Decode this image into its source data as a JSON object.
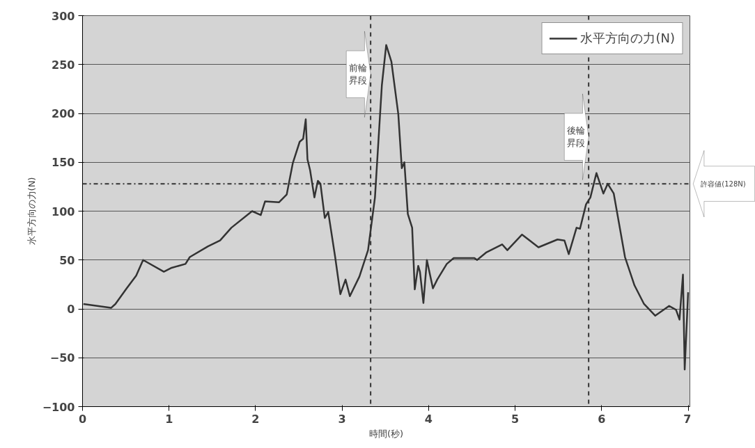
{
  "chart_data": {
    "type": "line",
    "xlabel": "時間(秒)",
    "ylabel": "水平方向の力(N)",
    "x": [
      0.01,
      0.33,
      0.38,
      0.51,
      0.62,
      0.7,
      0.94,
      1.03,
      1.19,
      1.24,
      1.45,
      1.59,
      1.72,
      1.96,
      2.06,
      2.11,
      2.27,
      2.36,
      2.43,
      2.51,
      2.55,
      2.58,
      2.6,
      2.63,
      2.68,
      2.72,
      2.75,
      2.8,
      2.84,
      2.92,
      2.98,
      3.04,
      3.09,
      3.2,
      3.3,
      3.38,
      3.46,
      3.51,
      3.57,
      3.65,
      3.69,
      3.72,
      3.76,
      3.81,
      3.84,
      3.88,
      3.9,
      3.94,
      3.98,
      4.05,
      4.1,
      4.21,
      4.29,
      4.53,
      4.56,
      4.67,
      4.85,
      4.91,
      5.08,
      5.27,
      5.49,
      5.57,
      5.62,
      5.71,
      5.75,
      5.82,
      5.87,
      5.94,
      6.02,
      6.07,
      6.14,
      6.27,
      6.38,
      6.49,
      6.62,
      6.78,
      6.86,
      6.9,
      6.94,
      6.96,
      7.0
    ],
    "series": [
      {
        "name": "水平方向の力(N)",
        "color": "#333333",
        "values": [
          5,
          1,
          5,
          21,
          34,
          50,
          38,
          42,
          46,
          53,
          64,
          70,
          83,
          100,
          96,
          110,
          109,
          117,
          149,
          171,
          174,
          194,
          153,
          142,
          114,
          131,
          128,
          93,
          99,
          53,
          15,
          30,
          13,
          33,
          60,
          114,
          229,
          270,
          253,
          199,
          144,
          150,
          97,
          83,
          20,
          44,
          38,
          6,
          50,
          21,
          30,
          46,
          52,
          52,
          50,
          58,
          66,
          60,
          76,
          63,
          71,
          70,
          56,
          83,
          82,
          107,
          114,
          139,
          118,
          128,
          118,
          53,
          24,
          5,
          -7,
          3,
          -1,
          -11,
          35,
          -62,
          17
        ]
      }
    ],
    "xlim": [
      0,
      7.02
    ],
    "ylim": [
      -100,
      300
    ],
    "xticks": [
      0,
      1,
      2,
      3,
      4,
      5,
      6,
      7
    ],
    "yticks": [
      -100,
      -50,
      0,
      50,
      100,
      150,
      200,
      250,
      300
    ],
    "grid": "y",
    "legend": "top right",
    "ref_lines": [
      {
        "axis": "x",
        "value": 3.33,
        "label": "前輪昇段",
        "line_style": "dashed"
      },
      {
        "axis": "x",
        "value": 5.85,
        "label": "後輪昇段",
        "line_style": "dashed"
      },
      {
        "axis": "y",
        "value": 128,
        "label": "許容値(128N)",
        "line_style": "dashdot"
      }
    ]
  }
}
